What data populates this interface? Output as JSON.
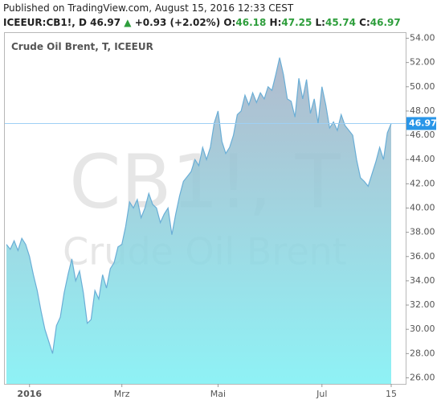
{
  "header": {
    "published": "Published on TradingView.com, August 15, 2016 12:33 CEST",
    "symbol": "ICEEUR:CB1!, D",
    "last": "46.97",
    "change": "+0.93 (+2.02%)",
    "open_label": "O:",
    "open": "46.18",
    "high_label": "H:",
    "high": "47.25",
    "low_label": "L:",
    "low": "45.74",
    "close_label": "C:",
    "close": "46.97"
  },
  "chart_data": {
    "type": "area",
    "title": "Crude Oil Brent, T, ICEEUR",
    "watermark": [
      "CB1!, T",
      "Crude Oil Brent"
    ],
    "categories": [
      null,
      null,
      null,
      null,
      null,
      null,
      "2016",
      null,
      null,
      null,
      null,
      null,
      null,
      null,
      null,
      null,
      null,
      null,
      null,
      null,
      null,
      null,
      null,
      null,
      null,
      null,
      null,
      null,
      null,
      null,
      "Mrz",
      null,
      null,
      null,
      null,
      null,
      null,
      null,
      null,
      null,
      null,
      null,
      null,
      null,
      null,
      null,
      null,
      null,
      null,
      null,
      null,
      null,
      null,
      null,
      null,
      "Mai",
      null,
      null,
      null,
      null,
      null,
      null,
      null,
      null,
      null,
      null,
      null,
      null,
      null,
      null,
      null,
      null,
      null,
      null,
      null,
      null,
      null,
      null,
      null,
      null,
      null,
      null,
      "Jul",
      null,
      null,
      null,
      null,
      null,
      null,
      null,
      null,
      null,
      null,
      null,
      null,
      null,
      null,
      null,
      null,
      null,
      "15"
    ],
    "values": [
      37.0,
      36.6,
      37.3,
      36.5,
      37.5,
      37.0,
      36.0,
      34.5,
      33.2,
      31.5,
      30.0,
      29.0,
      28.0,
      30.3,
      31.0,
      33.0,
      34.5,
      35.8,
      34.0,
      34.8,
      33.0,
      30.5,
      30.8,
      33.2,
      32.5,
      34.5,
      33.4,
      35.0,
      35.5,
      36.8,
      37.0,
      38.5,
      40.5,
      40.0,
      40.7,
      39.2,
      40.0,
      41.2,
      40.3,
      40.0,
      38.8,
      39.5,
      40.0,
      37.8,
      39.5,
      41.0,
      42.2,
      42.6,
      43.0,
      44.0,
      43.5,
      45.0,
      44.0,
      45.0,
      47.0,
      48.0,
      45.5,
      44.5,
      45.0,
      46.0,
      47.7,
      48.0,
      49.3,
      48.5,
      49.5,
      48.7,
      49.5,
      49.0,
      50.0,
      49.7,
      51.0,
      52.4,
      51.0,
      49.0,
      48.8,
      47.5,
      50.7,
      49.0,
      50.6,
      47.8,
      49.0,
      47.0,
      50.0,
      48.5,
      46.6,
      47.1,
      46.4,
      47.7,
      46.8,
      46.4,
      46.0,
      44.0,
      42.5,
      42.2,
      41.8,
      42.8,
      43.8,
      45.0,
      44.0,
      46.2,
      46.97
    ],
    "value_labels": {
      "100": "46.97"
    },
    "line_color": "#6aaed6",
    "fill_colors": [
      "#a7b1c6",
      "#7ff0f4"
    ],
    "last_label_color": "#2a96e8",
    "ylim": [
      25.5,
      54.5
    ],
    "yticks": [
      {
        "value": 26,
        "label": "26.00"
      },
      {
        "value": 28,
        "label": "28.00"
      },
      {
        "value": 30,
        "label": "30.00"
      },
      {
        "value": 32,
        "label": "32.00"
      },
      {
        "value": 34,
        "label": "34.00"
      },
      {
        "value": 36,
        "label": "36.00"
      },
      {
        "value": 38,
        "label": "38.00"
      },
      {
        "value": 40,
        "label": "40.00"
      },
      {
        "value": 42,
        "label": "42.00"
      },
      {
        "value": 44,
        "label": "44.00"
      },
      {
        "value": 46,
        "label": "46.00"
      },
      {
        "value": 48,
        "label": "48.00"
      },
      {
        "value": 50,
        "label": "50.00"
      },
      {
        "value": 52,
        "label": "52.00"
      },
      {
        "value": 54,
        "label": "54.00"
      }
    ],
    "y_axis_side": "right",
    "grid": false
  }
}
